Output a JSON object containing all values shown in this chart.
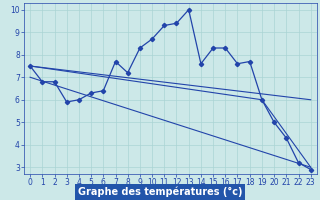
{
  "xlabel": "Graphe des températures (°c)",
  "background_color": "#cce8e8",
  "xlabel_bg": "#2255aa",
  "line_color": "#2244aa",
  "xlim": [
    -0.5,
    23.5
  ],
  "ylim": [
    2.7,
    10.3
  ],
  "yticks": [
    3,
    4,
    5,
    6,
    7,
    8,
    9,
    10
  ],
  "xticks": [
    0,
    1,
    2,
    3,
    4,
    5,
    6,
    7,
    8,
    9,
    10,
    11,
    12,
    13,
    14,
    15,
    16,
    17,
    18,
    19,
    20,
    21,
    22,
    23
  ],
  "series1_x": [
    0,
    1,
    2,
    3,
    4,
    5,
    6,
    7,
    8,
    9,
    10,
    11,
    12,
    13,
    14,
    15,
    16,
    17,
    18,
    19,
    20,
    21,
    22,
    23
  ],
  "series1_y": [
    7.5,
    6.8,
    6.8,
    5.9,
    6.0,
    6.3,
    6.4,
    7.7,
    7.2,
    8.3,
    8.7,
    9.3,
    9.4,
    10.0,
    7.6,
    8.3,
    8.3,
    7.6,
    7.7,
    6.0,
    5.0,
    4.3,
    3.2,
    2.9
  ],
  "series2_x": [
    0,
    19,
    23
  ],
  "series2_y": [
    7.5,
    6.0,
    3.0
  ],
  "series3_x": [
    0,
    23
  ],
  "series3_y": [
    7.5,
    6.0
  ],
  "series4_x": [
    0,
    23
  ],
  "series4_y": [
    7.0,
    3.0
  ],
  "grid_color": "#aad4d4",
  "tick_fontsize": 5.5,
  "xlabel_fontsize": 7.0
}
